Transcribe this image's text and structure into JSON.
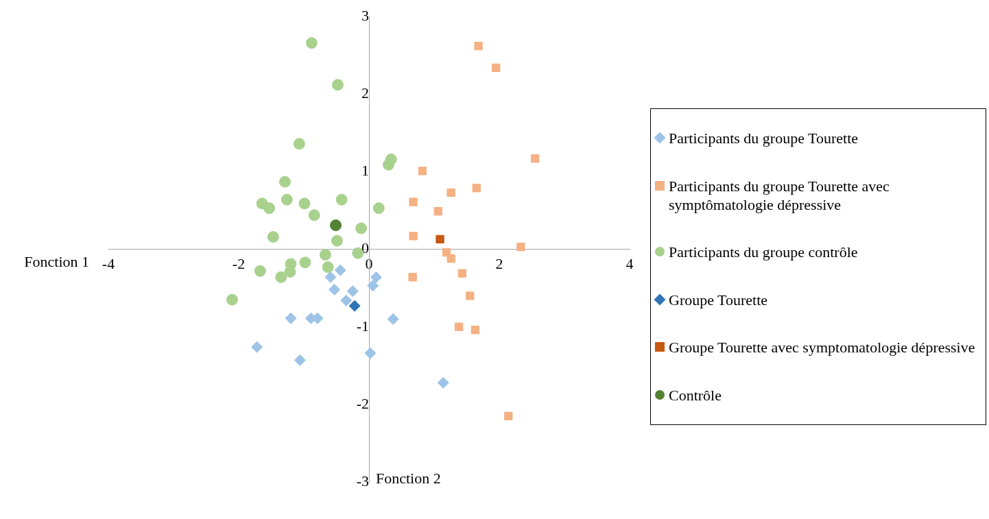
{
  "chart_data": {
    "type": "scatter",
    "xlabel": "Fonction 1",
    "ylabel": "Fonction 2",
    "xlim": [
      -4,
      4
    ],
    "xticks": [
      -4,
      -2,
      0,
      2,
      4
    ],
    "ylim": [
      -3,
      3
    ],
    "yticks": [
      -3,
      -2,
      -1,
      0,
      1,
      2,
      3
    ],
    "grid": false,
    "legend": "right",
    "series": [
      {
        "name": "Participants du groupe Tourette",
        "color": "#9dc3e6",
        "marker": "diamond",
        "x": [
          -1.72,
          -1.2,
          -1.06,
          -0.89,
          -0.79,
          -0.59,
          -0.53,
          -0.44,
          -0.35,
          -0.25,
          0.06,
          0.11,
          0.02,
          0.37,
          1.14
        ],
        "values": [
          -1.26,
          -0.89,
          -1.43,
          -0.89,
          -0.89,
          -0.36,
          -0.52,
          -0.27,
          -0.66,
          -0.54,
          -0.47,
          -0.36,
          -1.34,
          -0.9,
          -1.72
        ]
      },
      {
        "name": "Participants du groupe Tourette avec symptômatologie dépressive",
        "color": "#f4b183",
        "marker": "square",
        "x": [
          1.68,
          1.95,
          2.55,
          0.82,
          1.65,
          1.26,
          0.68,
          1.06,
          0.68,
          2.33,
          1.19,
          1.26,
          1.43,
          1.55,
          0.67,
          1.38,
          1.63,
          2.14
        ],
        "values": [
          2.62,
          2.34,
          1.17,
          1.01,
          0.79,
          0.73,
          0.61,
          0.49,
          0.17,
          0.03,
          -0.04,
          -0.12,
          -0.31,
          -0.6,
          -0.36,
          -1.0,
          -1.04,
          -2.15
        ]
      },
      {
        "name": "Participants du groupe contrôle",
        "color": "#a9d18e",
        "marker": "circle",
        "x": [
          -0.88,
          -0.48,
          -1.07,
          0.34,
          0.3,
          -1.29,
          -1.26,
          -0.99,
          -1.64,
          -1.53,
          -0.84,
          -0.42,
          0.15,
          -0.12,
          -1.47,
          -0.49,
          -0.67,
          -0.17,
          -1.2,
          -0.98,
          -0.63,
          -1.67,
          -1.21,
          -1.35,
          -2.1
        ],
        "values": [
          2.66,
          2.12,
          1.36,
          1.16,
          1.09,
          0.87,
          0.64,
          0.59,
          0.59,
          0.53,
          0.44,
          0.64,
          0.53,
          0.27,
          0.16,
          0.11,
          -0.07,
          -0.05,
          -0.19,
          -0.17,
          -0.23,
          -0.28,
          -0.29,
          -0.36,
          -0.65
        ]
      },
      {
        "name": "Groupe Tourette",
        "color": "#2e75b6",
        "marker": "diamond",
        "x": [
          -0.22
        ],
        "values": [
          -0.73
        ]
      },
      {
        "name": "Groupe Tourette avec symptomatologie dépressive",
        "color": "#c55a11",
        "marker": "square",
        "x": [
          1.09
        ],
        "values": [
          0.13
        ]
      },
      {
        "name": "Contrôle",
        "color": "#548235",
        "marker": "circle",
        "x": [
          -0.51
        ],
        "values": [
          0.31
        ]
      }
    ]
  }
}
